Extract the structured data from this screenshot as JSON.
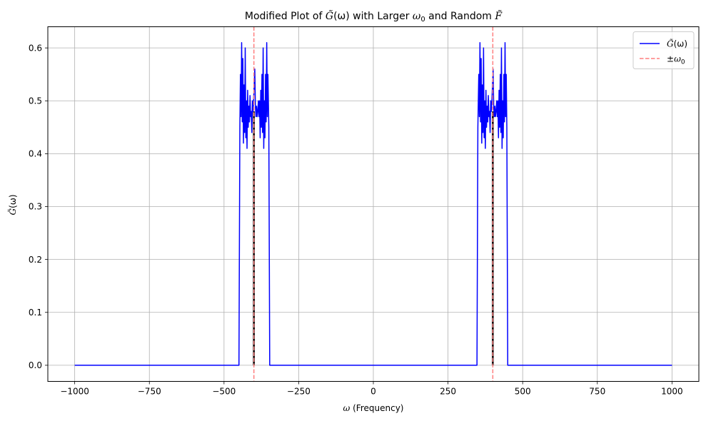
{
  "chart_data": {
    "type": "line",
    "title": {
      "prefix": "Modified Plot of ",
      "symbol_main": "G̃",
      "symbol_arg": "(ω)",
      "middle": " with Larger ",
      "omega": "ω",
      "omega_sub": "0",
      "suffix": " and Random ",
      "f_symbol": "F̃"
    },
    "xlabel": {
      "symbol": "ω",
      "text": " (Frequency)"
    },
    "ylabel": {
      "symbol": "G̃",
      "arg": "(ω)"
    },
    "xlim": [
      -1090,
      1090
    ],
    "ylim": [
      -0.0305,
      0.64
    ],
    "xticks": [
      -1000,
      -750,
      -500,
      -250,
      0,
      250,
      500,
      750,
      1000
    ],
    "xtick_labels": [
      "−1000",
      "−750",
      "−500",
      "−250",
      "0",
      "250",
      "500",
      "750",
      "1000"
    ],
    "yticks": [
      0.0,
      0.1,
      0.2,
      0.3,
      0.4,
      0.5,
      0.6
    ],
    "ytick_labels": [
      "0.0",
      "0.1",
      "0.2",
      "0.3",
      "0.4",
      "0.5",
      "0.6"
    ],
    "grid": true,
    "legend_position": "top-right",
    "legend": [
      {
        "label_symbol": "G̃",
        "label_arg": "(ω)",
        "color": "#0000ff",
        "style": "solid"
      },
      {
        "label_prefix": "±",
        "label_symbol": "ω",
        "label_sub": "0",
        "color": "#ff7f7f",
        "style": "dashed"
      }
    ],
    "omega0": 400,
    "band_halfwidth": 50,
    "series": [
      {
        "color": "#0000ff",
        "line_width": 1.5,
        "x": [
          -1000,
          -450,
          -447,
          -445,
          -443,
          -441,
          -439,
          -437,
          -435,
          -433,
          -431,
          -429,
          -427,
          -425,
          -423,
          -421,
          -419,
          -417,
          -415,
          -413,
          -411,
          -409,
          -407,
          -405,
          -403,
          -401,
          -399,
          -397,
          -395,
          -393,
          -391,
          -389,
          -387,
          -385,
          -383,
          -381,
          -379,
          -377,
          -375,
          -373,
          -371,
          -369,
          -367,
          -365,
          -363,
          -361,
          -359,
          -357,
          -355,
          -353,
          -350,
          -347,
          347,
          350,
          353,
          355,
          357,
          359,
          361,
          363,
          365,
          367,
          369,
          371,
          373,
          375,
          377,
          379,
          381,
          383,
          385,
          387,
          389,
          391,
          393,
          395,
          397,
          399,
          401,
          403,
          405,
          407,
          409,
          411,
          413,
          415,
          417,
          419,
          421,
          423,
          425,
          427,
          429,
          431,
          433,
          435,
          437,
          439,
          441,
          443,
          445,
          447,
          450,
          1000
        ],
        "y": [
          0,
          0,
          0.45,
          0.55,
          0.47,
          0.61,
          0.46,
          0.58,
          0.42,
          0.53,
          0.44,
          0.6,
          0.43,
          0.5,
          0.41,
          0.52,
          0.45,
          0.49,
          0.46,
          0.51,
          0.47,
          0.48,
          0.44,
          0.5,
          0.48,
          0.5,
          0.53,
          0.56,
          0.49,
          0.47,
          0.49,
          0.47,
          0.48,
          0.5,
          0.47,
          0.5,
          0.43,
          0.52,
          0.45,
          0.55,
          0.44,
          0.6,
          0.41,
          0.5,
          0.43,
          0.55,
          0.46,
          0.61,
          0.47,
          0.55,
          0.45,
          0,
          0,
          0.45,
          0.55,
          0.47,
          0.61,
          0.46,
          0.58,
          0.42,
          0.53,
          0.44,
          0.6,
          0.43,
          0.5,
          0.41,
          0.52,
          0.45,
          0.49,
          0.46,
          0.51,
          0.47,
          0.48,
          0.44,
          0.5,
          0.48,
          0.5,
          0.53,
          0.56,
          0.49,
          0.47,
          0.49,
          0.47,
          0.48,
          0.5,
          0.47,
          0.5,
          0.43,
          0.52,
          0.45,
          0.55,
          0.44,
          0.6,
          0.41,
          0.5,
          0.43,
          0.55,
          0.46,
          0.61,
          0.47,
          0.55,
          0.45,
          0,
          0
        ]
      }
    ],
    "impulses": {
      "color": "#000000",
      "x": [
        -400,
        400
      ],
      "y": [
        0.48,
        0.48
      ]
    }
  }
}
